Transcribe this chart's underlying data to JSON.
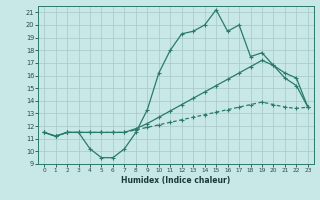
{
  "xlabel": "Humidex (Indice chaleur)",
  "xlim": [
    -0.5,
    23.5
  ],
  "ylim": [
    9,
    21.5
  ],
  "xticks": [
    0,
    1,
    2,
    3,
    4,
    5,
    6,
    7,
    8,
    9,
    10,
    11,
    12,
    13,
    14,
    15,
    16,
    17,
    18,
    19,
    20,
    21,
    22,
    23
  ],
  "yticks": [
    9,
    10,
    11,
    12,
    13,
    14,
    15,
    16,
    17,
    18,
    19,
    20,
    21
  ],
  "line_color": "#2a7a6a",
  "bg_color": "#c8e8e8",
  "grid_color": "#a8c8c8",
  "line1_x": [
    0,
    1,
    2,
    3,
    4,
    5,
    6,
    7,
    8,
    9,
    10,
    11,
    12,
    13,
    14,
    15,
    16,
    17,
    18,
    19,
    20,
    21,
    22,
    23
  ],
  "line1_y": [
    11.5,
    11.2,
    11.5,
    11.5,
    10.2,
    9.5,
    9.5,
    10.2,
    11.5,
    13.3,
    16.2,
    18.0,
    19.3,
    19.5,
    20.0,
    21.2,
    19.5,
    20.0,
    17.5,
    17.8,
    16.8,
    15.8,
    15.2,
    13.5
  ],
  "line2_x": [
    0,
    1,
    2,
    3,
    4,
    5,
    6,
    7,
    8,
    9,
    10,
    11,
    12,
    13,
    14,
    15,
    16,
    17,
    18,
    19,
    20,
    21,
    22,
    23
  ],
  "line2_y": [
    11.5,
    11.2,
    11.5,
    11.5,
    11.5,
    11.5,
    11.5,
    11.5,
    11.8,
    12.2,
    12.7,
    13.2,
    13.7,
    14.2,
    14.7,
    15.2,
    15.7,
    16.2,
    16.7,
    17.2,
    16.8,
    16.2,
    15.8,
    13.5
  ],
  "line3_x": [
    0,
    1,
    2,
    3,
    4,
    5,
    6,
    7,
    8,
    9,
    10,
    11,
    12,
    13,
    14,
    15,
    16,
    17,
    18,
    19,
    20,
    21,
    22,
    23
  ],
  "line3_y": [
    11.5,
    11.2,
    11.5,
    11.5,
    11.5,
    11.5,
    11.5,
    11.5,
    11.7,
    11.9,
    12.1,
    12.3,
    12.5,
    12.7,
    12.9,
    13.1,
    13.3,
    13.5,
    13.7,
    13.9,
    13.7,
    13.5,
    13.4,
    13.5
  ]
}
